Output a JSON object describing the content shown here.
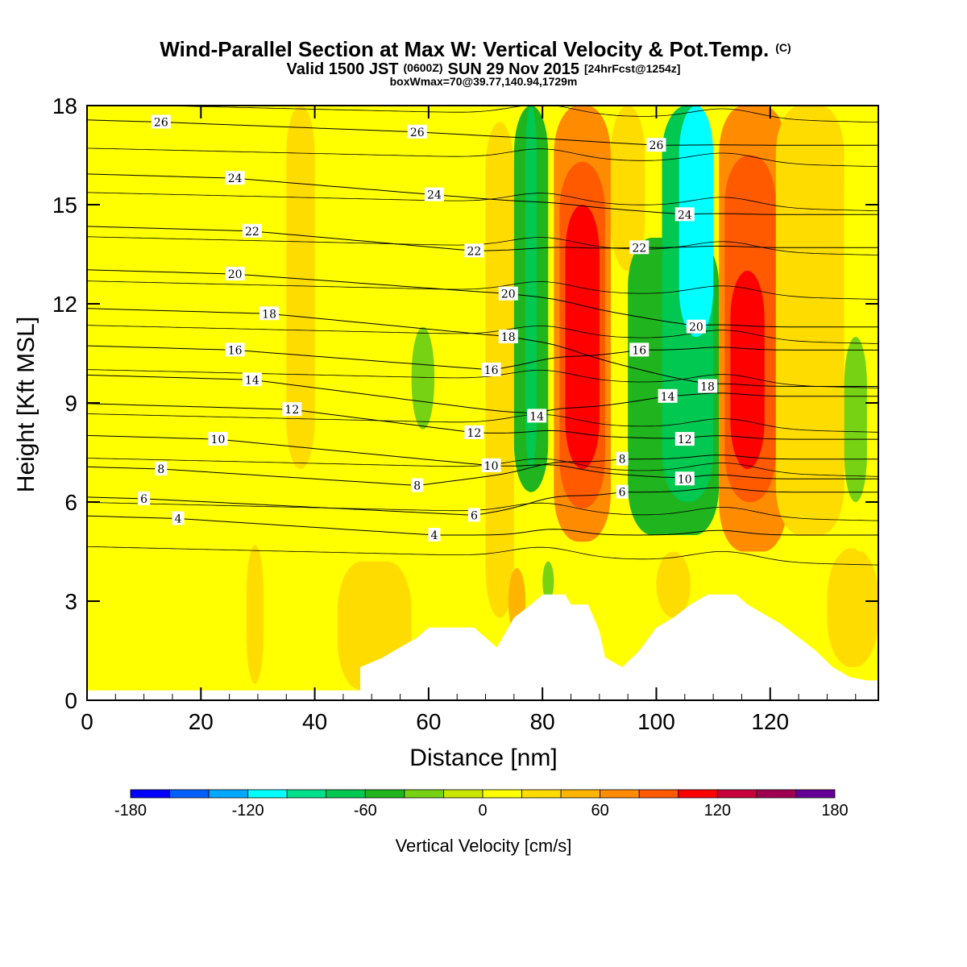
{
  "chart_data": {
    "type": "heatmap",
    "title": "Wind-Parallel Section at Max W: Vertical Velocity & Pot.Temp.",
    "title_mark": "(C)",
    "subtitle_parts": [
      "Valid 1500 JST",
      "(0600Z)",
      "SUN 29 Nov 2015",
      "[24hrFcst@1254z]"
    ],
    "subtitle2": "boxWmax=70@39.77,140.94,1729m",
    "xlabel": "Distance [nm]",
    "ylabel": "Height [Kft MSL]",
    "xlim": [
      0,
      139
    ],
    "ylim": [
      0,
      18
    ],
    "x_ticks": [
      0,
      20,
      40,
      60,
      80,
      100,
      120
    ],
    "y_ticks": [
      0,
      3,
      6,
      9,
      12,
      15,
      18
    ],
    "x_tick_labels": [
      "0",
      "20",
      "40",
      "60",
      "80",
      "100",
      "120"
    ],
    "y_tick_labels": [
      "0",
      "3",
      "6",
      "9",
      "12",
      "15",
      "18"
    ],
    "colorbar": {
      "label": "Vertical Velocity [cm/s]",
      "min": -180,
      "max": 180,
      "step": 20,
      "tick_labels": [
        "-180",
        "-120",
        "-60",
        "0",
        "60",
        "120",
        "180"
      ],
      "colors": [
        "#0000ff",
        "#0060ff",
        "#00a8ff",
        "#00ffff",
        "#00e08c",
        "#00c850",
        "#20b41e",
        "#78d214",
        "#c8e600",
        "#ffff00",
        "#ffdc00",
        "#ffb400",
        "#ff8c00",
        "#ff5a00",
        "#ff0000",
        "#c8003c",
        "#a00050",
        "#640096"
      ]
    },
    "terrain_kft": [
      [
        0,
        0.3
      ],
      [
        48,
        0.3
      ],
      [
        48,
        1.0
      ],
      [
        52,
        1.3
      ],
      [
        55,
        1.6
      ],
      [
        58,
        1.9
      ],
      [
        60,
        2.2
      ],
      [
        68,
        2.2
      ],
      [
        70,
        1.9
      ],
      [
        72,
        1.6
      ],
      [
        75,
        2.5
      ],
      [
        78,
        2.9
      ],
      [
        80,
        3.2
      ],
      [
        84,
        3.2
      ],
      [
        85,
        2.9
      ],
      [
        88,
        2.9
      ],
      [
        90,
        2.1
      ],
      [
        91,
        1.3
      ],
      [
        94,
        1.0
      ],
      [
        97,
        1.5
      ],
      [
        100,
        2.2
      ],
      [
        103,
        2.5
      ],
      [
        106,
        2.9
      ],
      [
        109,
        3.2
      ],
      [
        114,
        3.2
      ],
      [
        116,
        2.9
      ],
      [
        119,
        2.6
      ],
      [
        122,
        2.3
      ],
      [
        125,
        1.9
      ],
      [
        128,
        1.5
      ],
      [
        131,
        1.0
      ],
      [
        134,
        0.7
      ],
      [
        137,
        0.6
      ],
      [
        139,
        0.6
      ]
    ],
    "vertical_velocity_cells": [
      {
        "x0": 0,
        "x1": 139,
        "y0": 0,
        "y1": 18,
        "w": 10
      },
      {
        "x0": 35,
        "x1": 40,
        "y0": 7.0,
        "y1": 18,
        "w": 25
      },
      {
        "x0": 28,
        "x1": 31,
        "y0": 0.5,
        "y1": 4.7,
        "w": 25
      },
      {
        "x0": 44,
        "x1": 57,
        "y0": 0.3,
        "y1": 4.2,
        "w": 25
      },
      {
        "x0": 57,
        "x1": 61,
        "y0": 8.2,
        "y1": 11.3,
        "w": -30
      },
      {
        "x0": 70,
        "x1": 75,
        "y0": 2.5,
        "y1": 17.5,
        "w": 25
      },
      {
        "x0": 74,
        "x1": 77,
        "y0": 2.0,
        "y1": 4.0,
        "w": 45
      },
      {
        "x0": 75,
        "x1": 81,
        "y0": 6.3,
        "y1": 18,
        "w": -45
      },
      {
        "x0": 77,
        "x1": 79,
        "y0": 7.0,
        "y1": 18,
        "w": -70
      },
      {
        "x0": 80,
        "x1": 82,
        "y0": 3.0,
        "y1": 4.2,
        "w": -40
      },
      {
        "x0": 82,
        "x1": 92,
        "y0": 4.8,
        "y1": 18,
        "w": 60
      },
      {
        "x0": 83,
        "x1": 91,
        "y0": 5.8,
        "y1": 16.3,
        "w": 85
      },
      {
        "x0": 84,
        "x1": 90,
        "y0": 7.0,
        "y1": 15.0,
        "w": 110
      },
      {
        "x0": 92,
        "x1": 98,
        "y0": 13.0,
        "y1": 18,
        "w": 25
      },
      {
        "x0": 95,
        "x1": 111,
        "y0": 5.0,
        "y1": 14.0,
        "w": -50
      },
      {
        "x0": 101,
        "x1": 110,
        "y0": 6.0,
        "y1": 18,
        "w": -70
      },
      {
        "x0": 104,
        "x1": 110,
        "y0": 11.0,
        "y1": 18,
        "w": -110
      },
      {
        "x0": 100,
        "x1": 106,
        "y0": 2.5,
        "y1": 4.5,
        "w": 30
      },
      {
        "x0": 111,
        "x1": 123,
        "y0": 4.5,
        "y1": 18,
        "w": 60
      },
      {
        "x0": 112,
        "x1": 121,
        "y0": 6.0,
        "y1": 16.5,
        "w": 85
      },
      {
        "x0": 113,
        "x1": 119,
        "y0": 7.0,
        "y1": 13.0,
        "w": 110
      },
      {
        "x0": 121,
        "x1": 133,
        "y0": 5.0,
        "y1": 18,
        "w": 25
      },
      {
        "x0": 130,
        "x1": 139,
        "y0": 1.0,
        "y1": 4.6,
        "w": 25
      },
      {
        "x0": 133,
        "x1": 139,
        "y0": 4.5,
        "y1": 17.0,
        "w": 10
      },
      {
        "x0": 133,
        "x1": 137,
        "y0": 6.0,
        "y1": 11.0,
        "w": -30
      }
    ],
    "isentrope_labels": [
      {
        "text": "26",
        "x": 13,
        "y": 17.5
      },
      {
        "text": "26",
        "x": 58,
        "y": 17.2
      },
      {
        "text": "26",
        "x": 100,
        "y": 16.8
      },
      {
        "text": "24",
        "x": 26,
        "y": 15.8
      },
      {
        "text": "24",
        "x": 61,
        "y": 15.3
      },
      {
        "text": "24",
        "x": 105,
        "y": 14.7
      },
      {
        "text": "22",
        "x": 29,
        "y": 14.2
      },
      {
        "text": "22",
        "x": 68,
        "y": 13.6
      },
      {
        "text": "22",
        "x": 97,
        "y": 13.7
      },
      {
        "text": "20",
        "x": 26,
        "y": 12.9
      },
      {
        "text": "20",
        "x": 74,
        "y": 12.3
      },
      {
        "text": "20",
        "x": 107,
        "y": 11.3
      },
      {
        "text": "18",
        "x": 32,
        "y": 11.7
      },
      {
        "text": "18",
        "x": 74,
        "y": 11.0
      },
      {
        "text": "18",
        "x": 109,
        "y": 9.5
      },
      {
        "text": "16",
        "x": 26,
        "y": 10.6
      },
      {
        "text": "16",
        "x": 71,
        "y": 10.0
      },
      {
        "text": "16",
        "x": 97,
        "y": 10.6
      },
      {
        "text": "14",
        "x": 29,
        "y": 9.7
      },
      {
        "text": "14",
        "x": 79,
        "y": 8.6
      },
      {
        "text": "14",
        "x": 102,
        "y": 9.2
      },
      {
        "text": "12",
        "x": 36,
        "y": 8.8
      },
      {
        "text": "12",
        "x": 68,
        "y": 8.1
      },
      {
        "text": "12",
        "x": 105,
        "y": 7.9
      },
      {
        "text": "10",
        "x": 23,
        "y": 7.9
      },
      {
        "text": "10",
        "x": 71,
        "y": 7.1
      },
      {
        "text": "10",
        "x": 105,
        "y": 6.7
      },
      {
        "text": "8",
        "x": 13,
        "y": 7.0
      },
      {
        "text": "8",
        "x": 58,
        "y": 6.5
      },
      {
        "text": "8",
        "x": 94,
        "y": 7.3
      },
      {
        "text": "6",
        "x": 10,
        "y": 6.1
      },
      {
        "text": "6",
        "x": 68,
        "y": 5.6
      },
      {
        "text": "6",
        "x": 94,
        "y": 6.3
      },
      {
        "text": "4",
        "x": 16,
        "y": 5.5
      },
      {
        "text": "4",
        "x": 61,
        "y": 5.0
      }
    ]
  }
}
